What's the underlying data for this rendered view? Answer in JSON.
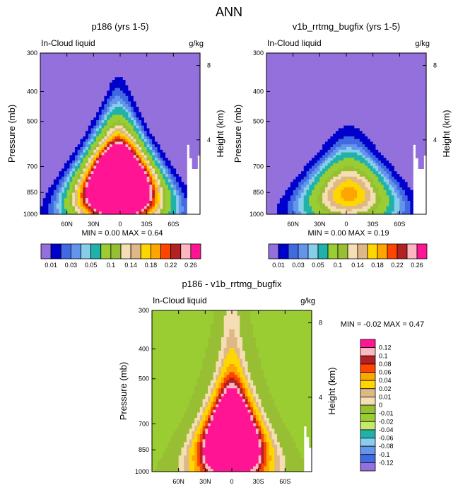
{
  "page_title": "ANN",
  "chart_data": [
    {
      "type": "heatmap",
      "title": "p186 (yrs 1-5)",
      "variable": "In-Cloud liquid",
      "units": "g/kg",
      "xlabel": "",
      "ylabel": "Pressure (mb)",
      "y2label": "Height (km)",
      "x_ticks": [
        "60N",
        "30N",
        "0",
        "30S",
        "60S"
      ],
      "x_tick_values": [
        60,
        30,
        0,
        -30,
        -60
      ],
      "xlim": [
        90,
        -90
      ],
      "y_ticks": [
        300,
        400,
        500,
        700,
        850,
        1000
      ],
      "ylim": [
        300,
        1000
      ],
      "y2_ticks": [
        "8",
        "4"
      ],
      "y2_tick_values": [
        8,
        4
      ],
      "stats": {
        "min_label": "MIN =",
        "min": "0.00",
        "max_label": "MAX =",
        "max": "0.64"
      },
      "colorbar": {
        "orientation": "horizontal",
        "labels": [
          "0.01",
          "0.03",
          "0.05",
          "0.1",
          "0.14",
          "0.18",
          "0.22",
          "0.26"
        ],
        "levels": [
          0.01,
          0.02,
          0.03,
          0.04,
          0.05,
          0.07,
          0.1,
          0.12,
          0.14,
          0.16,
          0.18,
          0.2,
          0.22,
          0.24,
          0.26
        ],
        "colors": [
          "#9370DB",
          "#0000CD",
          "#4169E1",
          "#6495ED",
          "#87CEEB",
          "#20B2AA",
          "#9ACD32",
          "#98BF34",
          "#F5DEB3",
          "#DEB887",
          "#FFD700",
          "#FFA500",
          "#FF4500",
          "#B22222",
          "#FFB6C1",
          "#FF1493"
        ]
      },
      "field_max": 0.64,
      "shape": "tall-plume"
    },
    {
      "type": "heatmap",
      "title": "v1b_rrtmg_bugfix (yrs 1-5)",
      "variable": "In-Cloud liquid",
      "units": "g/kg",
      "xlabel": "",
      "ylabel": "Pressure (mb)",
      "y2label": "Height (km)",
      "x_ticks": [
        "60N",
        "30N",
        "0",
        "30S",
        "60S"
      ],
      "x_tick_values": [
        60,
        30,
        0,
        -30,
        -60
      ],
      "xlim": [
        90,
        -90
      ],
      "y_ticks": [
        300,
        400,
        500,
        700,
        850,
        1000
      ],
      "ylim": [
        300,
        1000
      ],
      "y2_ticks": [
        "8",
        "4"
      ],
      "y2_tick_values": [
        8,
        4
      ],
      "stats": {
        "min_label": "MIN =",
        "min": "0.00",
        "max_label": "MAX =",
        "max": "0.19"
      },
      "colorbar": {
        "orientation": "horizontal",
        "labels": [
          "0.01",
          "0.03",
          "0.05",
          "0.1",
          "0.14",
          "0.18",
          "0.22",
          "0.26"
        ],
        "levels": [
          0.01,
          0.02,
          0.03,
          0.04,
          0.05,
          0.07,
          0.1,
          0.12,
          0.14,
          0.16,
          0.18,
          0.2,
          0.22,
          0.24,
          0.26
        ],
        "colors": [
          "#9370DB",
          "#0000CD",
          "#4169E1",
          "#6495ED",
          "#87CEEB",
          "#20B2AA",
          "#9ACD32",
          "#98BF34",
          "#F5DEB3",
          "#DEB887",
          "#FFD700",
          "#FFA500",
          "#FF4500",
          "#B22222",
          "#FFB6C1",
          "#FF1493"
        ]
      },
      "field_max": 0.19,
      "shape": "low-core"
    },
    {
      "type": "heatmap",
      "title": "p186 - v1b_rrtmg_bugfix",
      "variable": "In-Cloud liquid",
      "units": "g/kg",
      "xlabel": "",
      "ylabel": "Pressure (mb)",
      "y2label": "Height (km)",
      "x_ticks": [
        "60N",
        "30N",
        "0",
        "30S",
        "60S"
      ],
      "x_tick_values": [
        60,
        30,
        0,
        -30,
        -60
      ],
      "xlim": [
        90,
        -90
      ],
      "y_ticks": [
        300,
        400,
        500,
        700,
        850,
        1000
      ],
      "ylim": [
        300,
        1000
      ],
      "y2_ticks": [
        "8",
        "4"
      ],
      "y2_tick_values": [
        8,
        4
      ],
      "stats": {
        "min_label": "MIN =",
        "min": "-0.02",
        "max_label": "MAX =",
        "max": "0.47"
      },
      "colorbar": {
        "orientation": "vertical",
        "labels": [
          "0.12",
          "0.1",
          "0.08",
          "0.06",
          "0.04",
          "0.02",
          "0.01",
          "0",
          "-0.01",
          "-0.02",
          "-0.04",
          "-0.06",
          "-0.08",
          "-0.1",
          "-0.12"
        ],
        "levels": [
          0.12,
          0.1,
          0.08,
          0.06,
          0.04,
          0.02,
          0.01,
          0,
          -0.01,
          -0.02,
          -0.04,
          -0.06,
          -0.08,
          -0.1,
          -0.12
        ],
        "colors": [
          "#FF1493",
          "#FFB6C1",
          "#B22222",
          "#FF4500",
          "#FFA500",
          "#FFD700",
          "#DEB887",
          "#F5DEB3",
          "#98BF34",
          "#9ACD32",
          "#C8E86C",
          "#20B2AA",
          "#87CEEB",
          "#6495ED",
          "#4169E1",
          "#9370DB"
        ]
      },
      "field_max": 0.47,
      "shape": "difference"
    }
  ]
}
